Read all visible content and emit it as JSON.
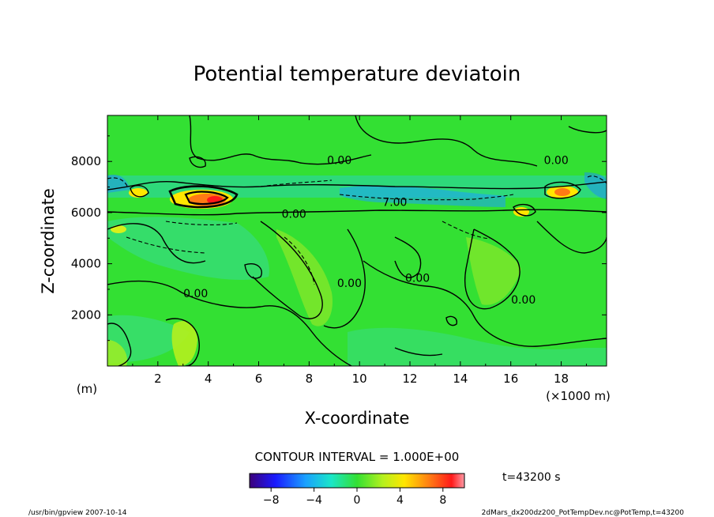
{
  "chart_data": {
    "type": "heatmap",
    "title": "Potential temperature deviatoin",
    "xlabel": "X-coordinate",
    "ylabel": "Z-coordinate",
    "x_unit_left": "(m)",
    "x_unit_right": "(×1000 m)",
    "xlim": [
      0,
      19.8
    ],
    "ylim": [
      0,
      9800
    ],
    "x_ticks": [
      2,
      4,
      6,
      8,
      10,
      12,
      14,
      16,
      18
    ],
    "y_ticks": [
      2000,
      4000,
      6000,
      8000
    ],
    "x_tick_labels": [
      "2",
      "4",
      "6",
      "8",
      "10",
      "12",
      "14",
      "16",
      "18"
    ],
    "y_tick_labels": [
      "2000",
      "4000",
      "6000",
      "8000"
    ],
    "contour_labels": [
      {
        "text": "0.00",
        "x": 9.2,
        "y": 8050
      },
      {
        "text": "0.00",
        "x": 17.8,
        "y": 8050
      },
      {
        "text": "7.00",
        "x": 11.4,
        "y": 6420
      },
      {
        "text": "0.00",
        "x": 7.4,
        "y": 5950
      },
      {
        "text": "0.00",
        "x": 9.6,
        "y": 3250
      },
      {
        "text": "0.00",
        "x": 12.3,
        "y": 3450
      },
      {
        "text": "0.00",
        "x": 3.5,
        "y": 2850
      },
      {
        "text": "0.00",
        "x": 16.5,
        "y": 2600
      }
    ],
    "contour_interval_text": "CONTOUR INTERVAL = 1.000E+00",
    "time_text": "t=43200  s",
    "colorbar": {
      "min": -10,
      "max": 10,
      "tick_values": [
        -8,
        -4,
        0,
        4,
        8
      ],
      "tick_labels": [
        "−8",
        "−4",
        "0",
        "4",
        "8"
      ]
    }
  },
  "footer": {
    "left": "/usr/bin/gpview  2007-10-14",
    "right": "2dMars_dx200dz200_PotTempDev.nc@PotTemp,t=43200"
  },
  "colors": {
    "background_field": "#33e033",
    "cool_field": "#36dc78",
    "warm_field": "#b4f01e",
    "contour": "#000000"
  }
}
